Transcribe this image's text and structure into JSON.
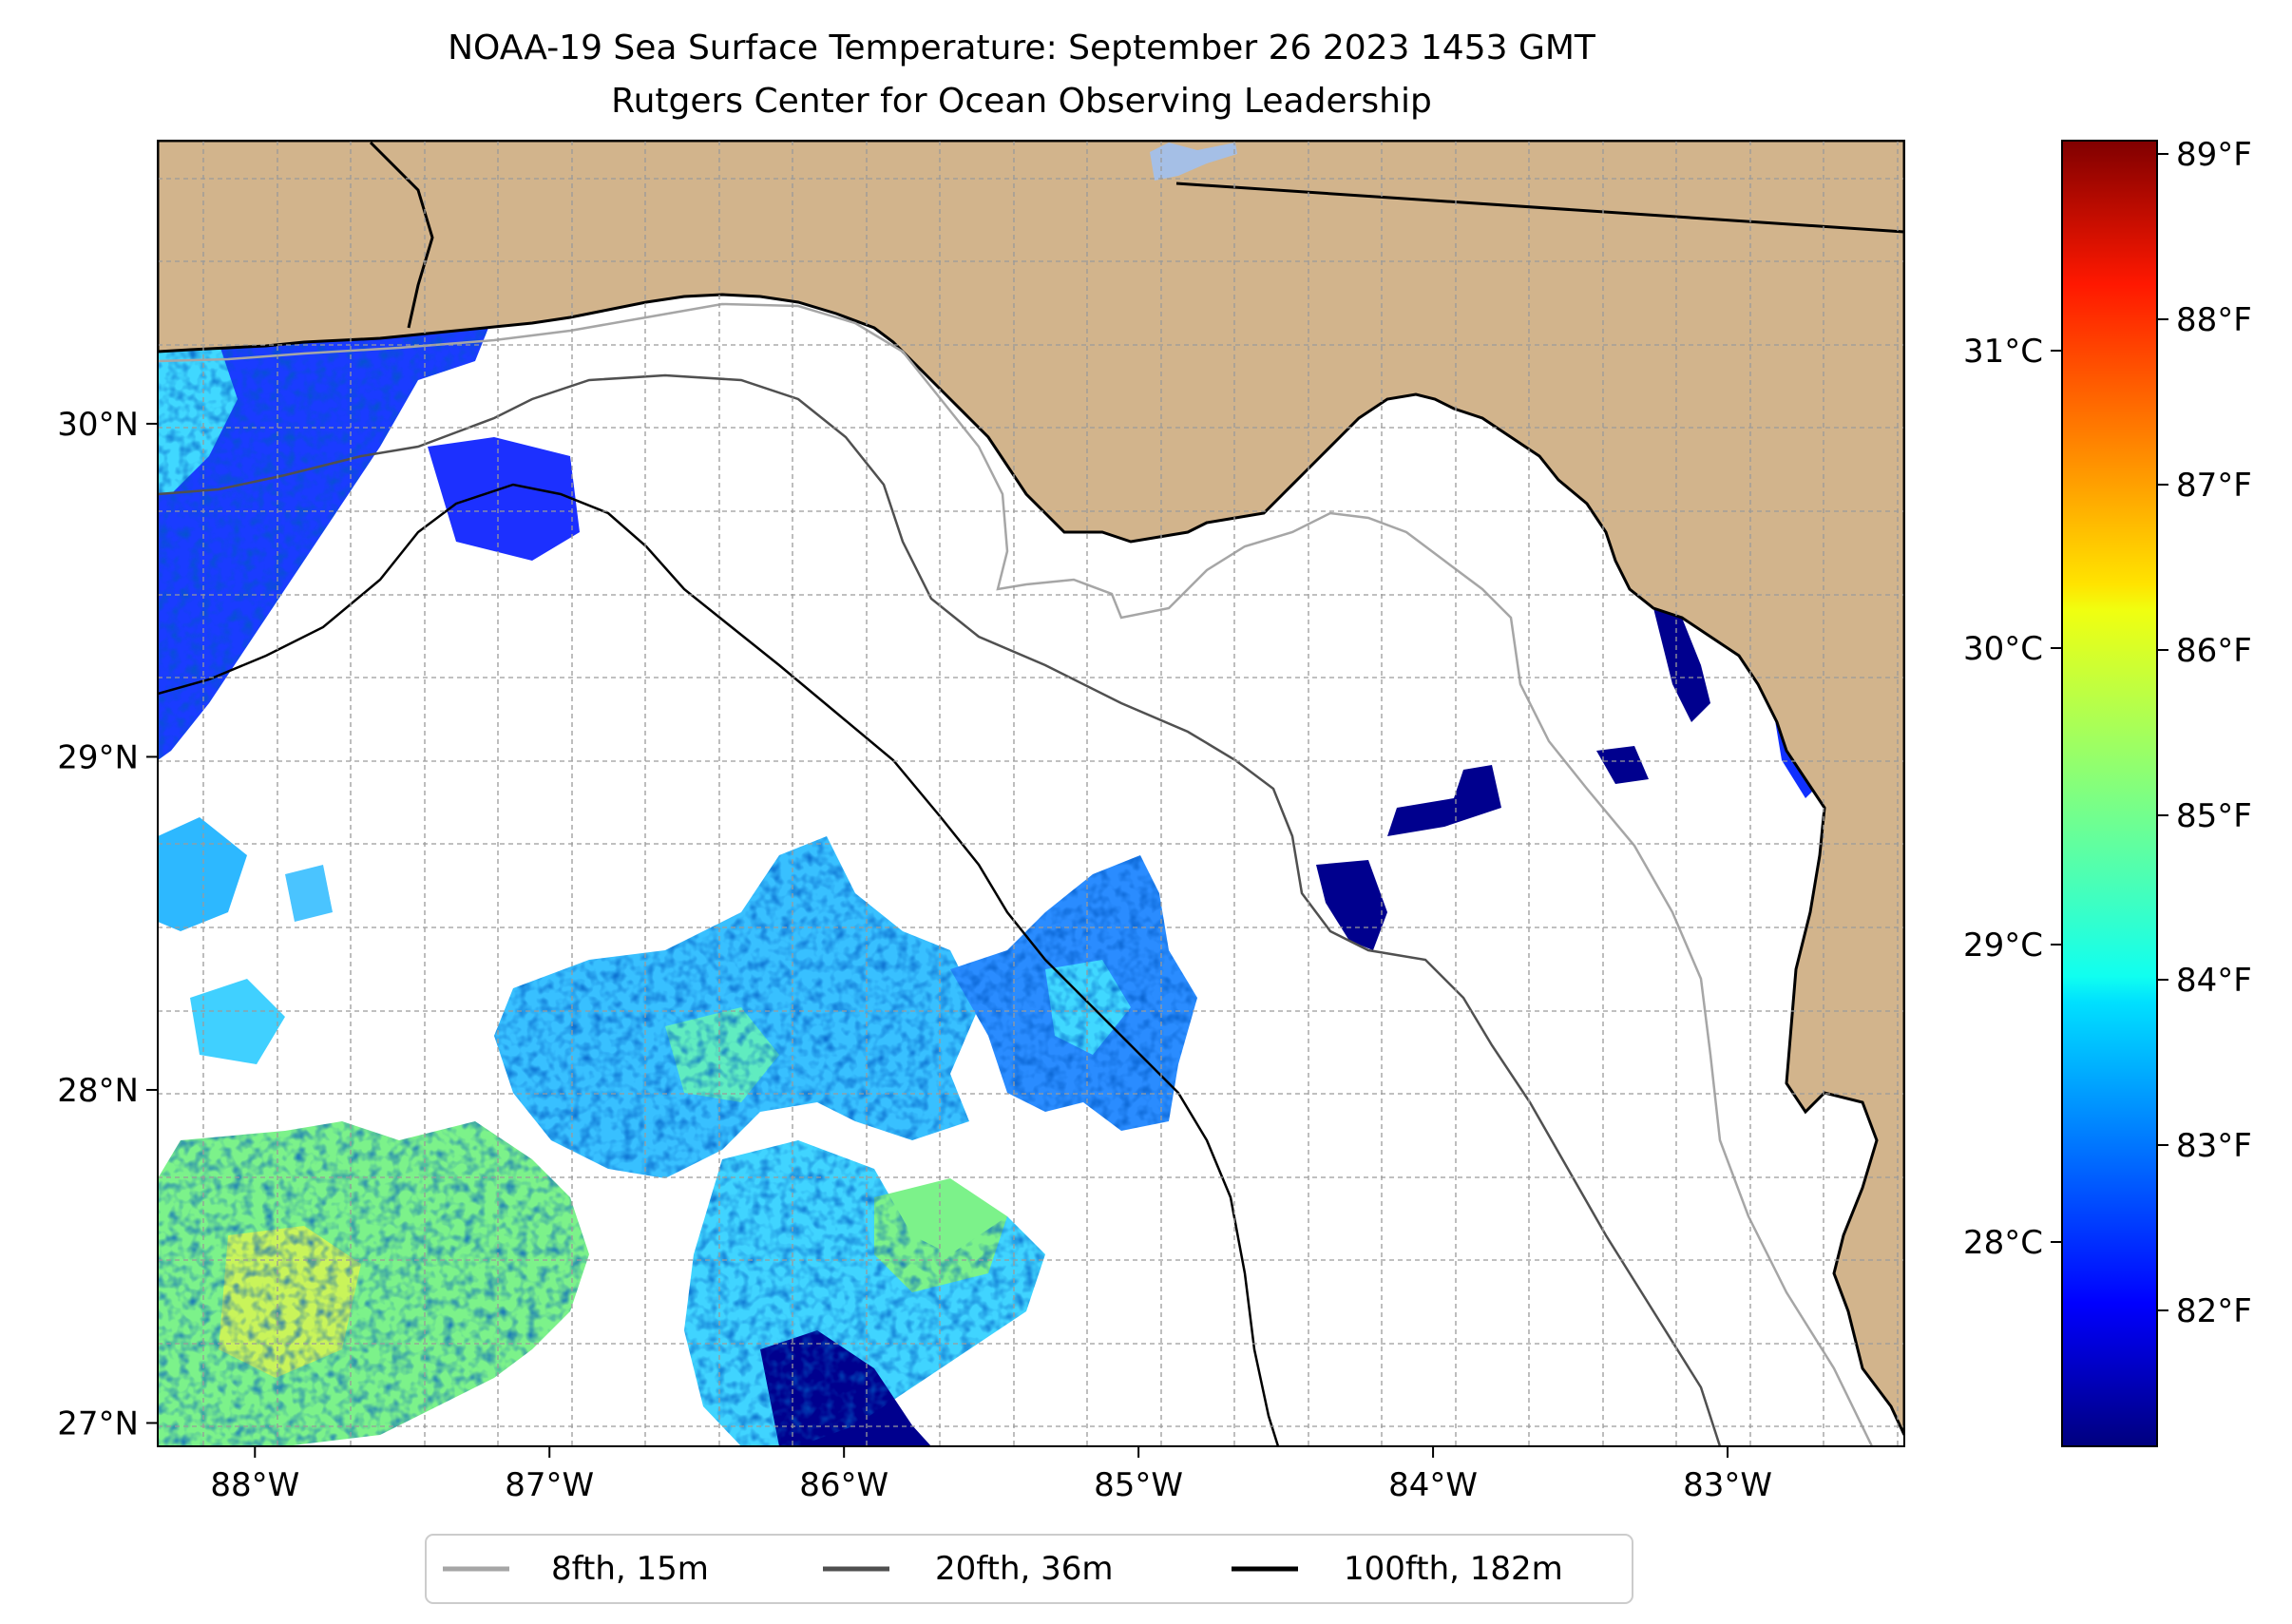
{
  "title": {
    "line1": "NOAA-19 Sea Surface Temperature: September 26 2023 1453 GMT",
    "line2": "Rutgers Center for Ocean Observing Leadership"
  },
  "map": {
    "land_color": "#d2b48c",
    "lake_color": "#a5bfe6",
    "lon_ticks": [
      {
        "lon": -88,
        "label": "88°W"
      },
      {
        "lon": -87,
        "label": "87°W"
      },
      {
        "lon": -86,
        "label": "86°W"
      },
      {
        "lon": -85,
        "label": "85°W"
      },
      {
        "lon": -84,
        "label": "84°W"
      },
      {
        "lon": -83,
        "label": "83°W"
      }
    ],
    "lat_ticks": [
      {
        "lat": 27,
        "label": "27°N"
      },
      {
        "lat": 28,
        "label": "28°N"
      },
      {
        "lat": 29,
        "label": "29°N"
      },
      {
        "lat": 30,
        "label": "30°N"
      }
    ],
    "lon_range": [
      -88.33,
      -82.4
    ],
    "lat_range": [
      26.93,
      30.85
    ]
  },
  "colorbar": {
    "colormap": "jet",
    "fahrenheit_ticks": [
      "89°F",
      "88°F",
      "87°F",
      "86°F",
      "85°F",
      "84°F",
      "83°F",
      "82°F"
    ],
    "celsius_ticks": [
      "31°C",
      "30°C",
      "29°C",
      "28°C"
    ]
  },
  "legend": {
    "items": [
      {
        "label": "8fth, 15m",
        "color": "#a6a6a6"
      },
      {
        "label": "20fth, 36m",
        "color": "#505050"
      },
      {
        "label": "100fth, 182m",
        "color": "#000000"
      }
    ]
  }
}
